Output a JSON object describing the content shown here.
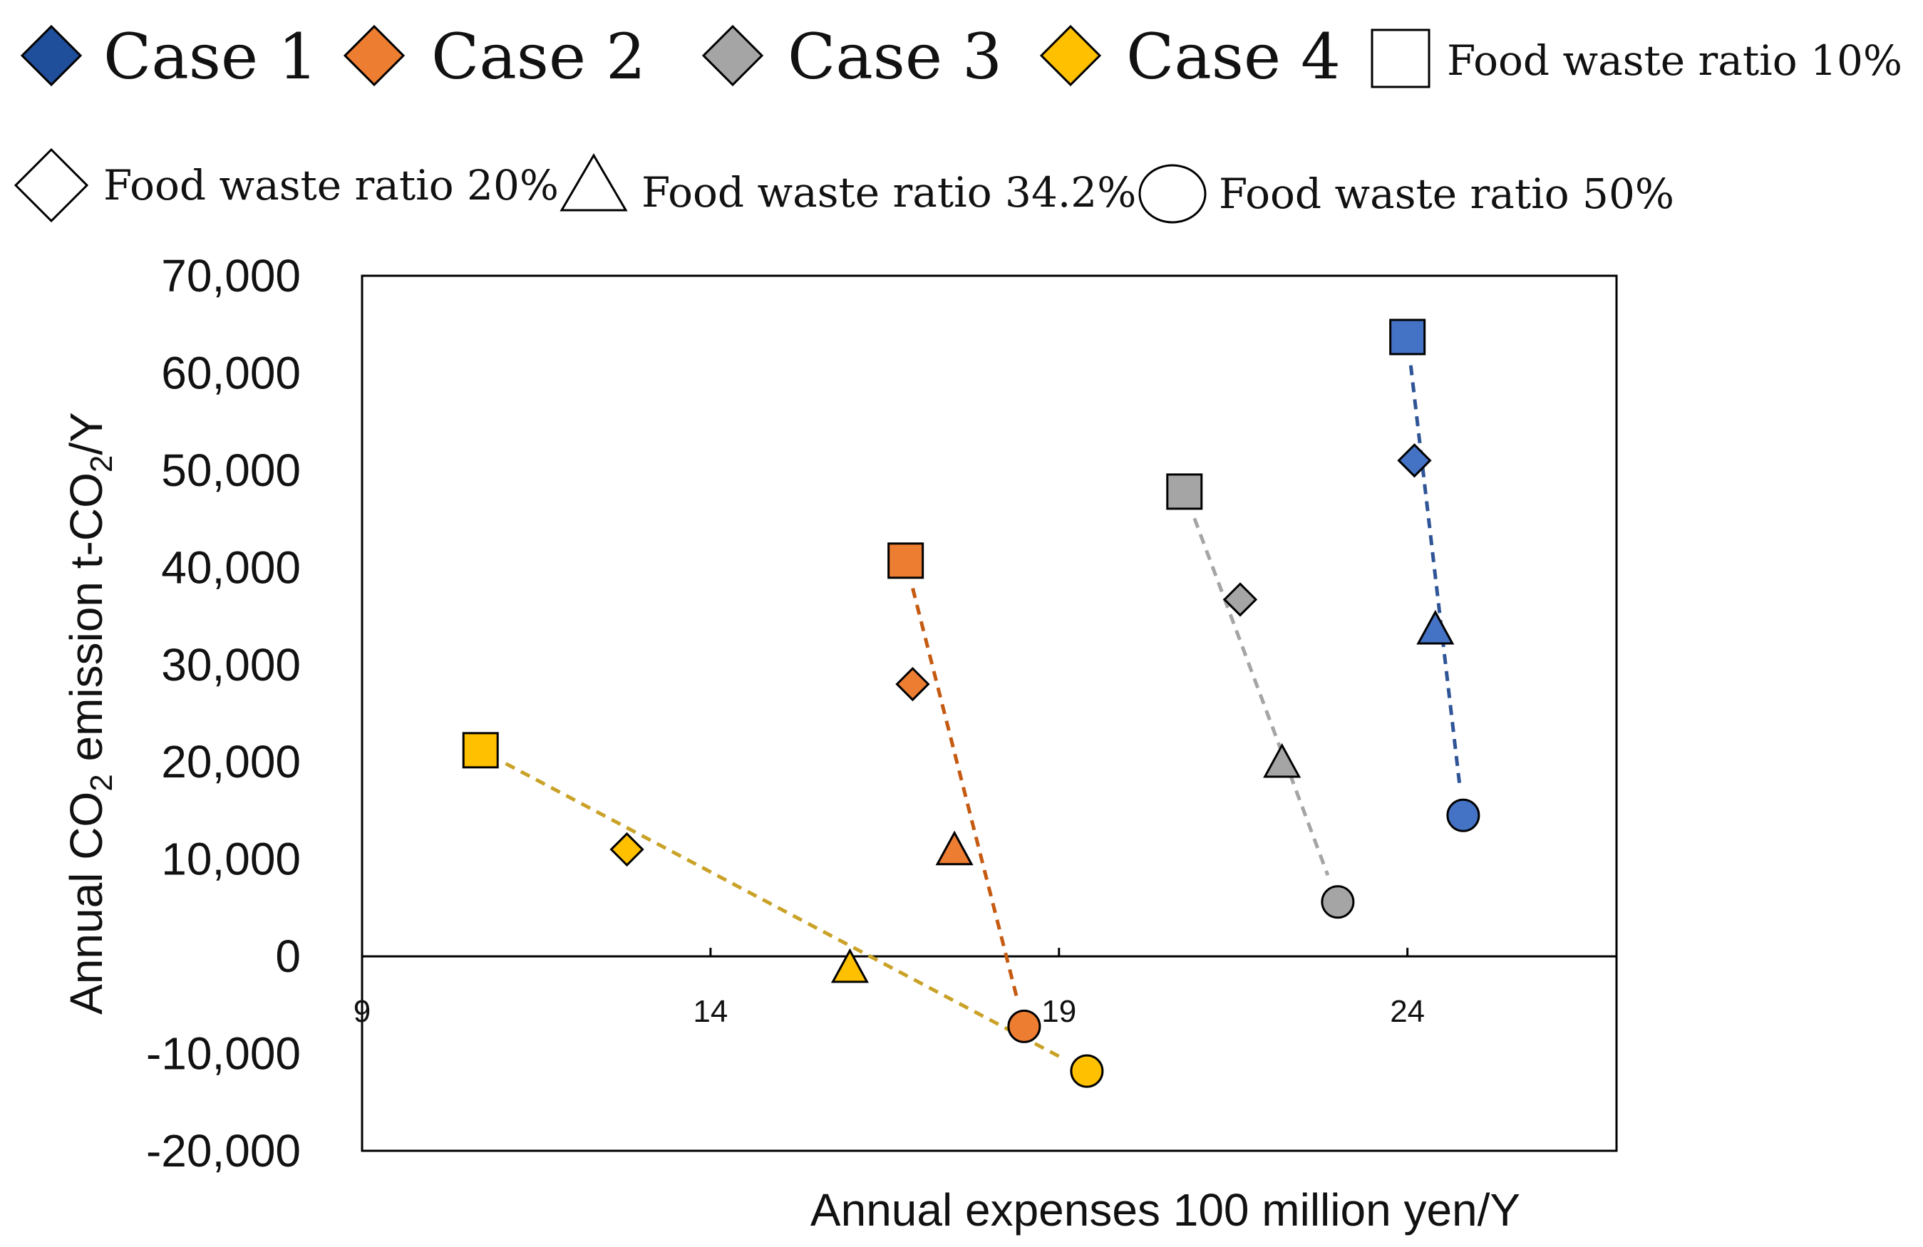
{
  "chart_data": {
    "type": "scatter",
    "title": "",
    "xlabel": "Annual expenses 100 million yen/Y",
    "ylabel": {
      "prefix": "Annual CO",
      "sub": "2",
      "middle": " emission t-CO",
      "sub2": "2",
      "suffix": "/Y"
    },
    "xlim": [
      9,
      27
    ],
    "ylim": [
      -20000,
      70000
    ],
    "xticks": [
      9,
      14,
      19,
      24
    ],
    "xtick_labels": [
      "9",
      "14",
      "19",
      "24"
    ],
    "yticks": [
      -20000,
      -10000,
      0,
      10000,
      20000,
      30000,
      40000,
      50000,
      60000,
      70000
    ],
    "ytick_labels": [
      "-20,000",
      "-10,000",
      "0",
      "10,000",
      "20,000",
      "30,000",
      "40,000",
      "50,000",
      "60,000",
      "70,000"
    ],
    "grid": false,
    "legend_position": "top",
    "series": [
      {
        "name": "Case 1",
        "color": "#4472C4",
        "line_color": "#2F5597",
        "points": [
          {
            "ratio": "Food waste ratio 10%",
            "marker": "square",
            "x": 24.0,
            "y": 63700
          },
          {
            "ratio": "Food waste ratio 20%",
            "marker": "diamond",
            "x": 24.1,
            "y": 51000
          },
          {
            "ratio": "Food waste ratio 34.2%",
            "marker": "triangle",
            "x": 24.4,
            "y": 33500
          },
          {
            "ratio": "Food waste ratio 50%",
            "marker": "circle",
            "x": 24.8,
            "y": 14500
          }
        ]
      },
      {
        "name": "Case 2",
        "color": "#ED7D31",
        "line_color": "#C55A11",
        "points": [
          {
            "ratio": "Food waste ratio 10%",
            "marker": "square",
            "x": 16.8,
            "y": 40700
          },
          {
            "ratio": "Food waste ratio 20%",
            "marker": "diamond",
            "x": 16.9,
            "y": 28000
          },
          {
            "ratio": "Food waste ratio 34.2%",
            "marker": "triangle",
            "x": 17.5,
            "y": 10800
          },
          {
            "ratio": "Food waste ratio 50%",
            "marker": "circle",
            "x": 18.5,
            "y": -7200
          }
        ]
      },
      {
        "name": "Case 3",
        "color": "#A5A5A5",
        "line_color": "#A5A5A5",
        "points": [
          {
            "ratio": "Food waste ratio 10%",
            "marker": "square",
            "x": 20.8,
            "y": 47800
          },
          {
            "ratio": "Food waste ratio 20%",
            "marker": "diamond",
            "x": 21.6,
            "y": 36700
          },
          {
            "ratio": "Food waste ratio 34.2%",
            "marker": "triangle",
            "x": 22.2,
            "y": 19800
          },
          {
            "ratio": "Food waste ratio 50%",
            "marker": "circle",
            "x": 23.0,
            "y": 5600
          }
        ]
      },
      {
        "name": "Case 4",
        "color": "#FFC000",
        "line_color": "#C9A227",
        "points": [
          {
            "ratio": "Food waste ratio 10%",
            "marker": "square",
            "x": 10.7,
            "y": 21200
          },
          {
            "ratio": "Food waste ratio 20%",
            "marker": "diamond",
            "x": 12.8,
            "y": 11000
          },
          {
            "ratio": "Food waste ratio 34.2%",
            "marker": "triangle",
            "x": 16.0,
            "y": -1300
          },
          {
            "ratio": "Food waste ratio 50%",
            "marker": "circle",
            "x": 19.4,
            "y": -11800
          }
        ]
      }
    ],
    "legend": {
      "cases": [
        {
          "label": "Case 1",
          "color": "#1F4E9A"
        },
        {
          "label": "Case 2",
          "color": "#ED7D31"
        },
        {
          "label": "Case 3",
          "color": "#A5A5A5"
        },
        {
          "label": "Case 4",
          "color": "#FFC000"
        }
      ],
      "ratios": [
        {
          "label": "Food waste ratio 10%",
          "marker": "square"
        },
        {
          "label": "Food waste ratio 20%",
          "marker": "diamond"
        },
        {
          "label": "Food waste ratio 34.2%",
          "marker": "triangle"
        },
        {
          "label": "Food waste ratio 50%",
          "marker": "circle"
        }
      ]
    }
  }
}
